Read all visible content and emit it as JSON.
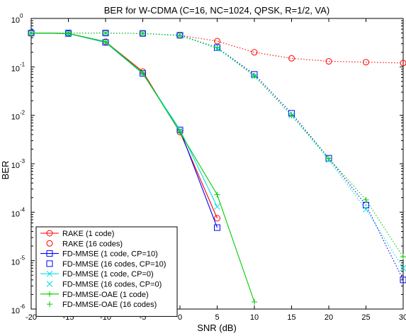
{
  "chart_data": {
    "type": "line",
    "title": "BER for W-CDMA (C=16, NC=1024, QPSK, R=1/2, VA)",
    "xlabel": "SNR (dB)",
    "ylabel": "BER",
    "xlim": [
      -20,
      30
    ],
    "ylim": [
      1e-06,
      1
    ],
    "yscale": "log",
    "x_ticks": [
      -20,
      -15,
      -10,
      -5,
      0,
      5,
      10,
      15,
      20,
      25,
      30
    ],
    "x_tick_labels": [
      "-20",
      "-15",
      "-10",
      "-5",
      "0",
      "5",
      "10",
      "15",
      "20",
      "25",
      "30"
    ],
    "y_ticks": [
      {
        "value": 1,
        "base": "10",
        "exp": "0"
      },
      {
        "value": 0.1,
        "base": "10",
        "exp": "-1"
      },
      {
        "value": 0.01,
        "base": "10",
        "exp": "-2"
      },
      {
        "value": 0.001,
        "base": "10",
        "exp": "-3"
      },
      {
        "value": 0.0001,
        "base": "10",
        "exp": "-4"
      },
      {
        "value": 1e-05,
        "base": "10",
        "exp": "-5"
      },
      {
        "value": 1e-06,
        "base": "10",
        "exp": "-6"
      }
    ],
    "grid": false,
    "legend_position": "bottom-left",
    "series": [
      {
        "name": "RAKE (1 code)",
        "color": "#ff0000",
        "marker": "circle",
        "line": "solid",
        "x": [
          -20,
          -15,
          -10,
          -5,
          0,
          5
        ],
        "y": [
          0.5,
          0.49,
          0.33,
          0.08,
          0.0045,
          7.5e-05
        ]
      },
      {
        "name": "RAKE (16 codes)",
        "color": "#ff0000",
        "marker": "circle",
        "line": "dotted",
        "x": [
          -20,
          -15,
          -10,
          -5,
          0,
          5,
          10,
          15,
          20,
          25,
          30
        ],
        "y": [
          0.5,
          0.5,
          0.5,
          0.49,
          0.45,
          0.34,
          0.2,
          0.15,
          0.13,
          0.125,
          0.12
        ]
      },
      {
        "name": "FD-MMSE (1 code, CP=10)",
        "color": "#0000ff",
        "marker": "square",
        "line": "solid",
        "x": [
          -20,
          -15,
          -10,
          -5,
          0,
          5
        ],
        "y": [
          0.5,
          0.49,
          0.32,
          0.073,
          0.005,
          4.8e-05
        ]
      },
      {
        "name": "FD-MMSE (16 codes, CP=10)",
        "color": "#0000ff",
        "marker": "square",
        "line": "dotted",
        "x": [
          -20,
          -15,
          -10,
          -5,
          0,
          5,
          10,
          15,
          20,
          25,
          30
        ],
        "y": [
          0.5,
          0.5,
          0.5,
          0.49,
          0.45,
          0.25,
          0.07,
          0.011,
          0.0013,
          0.00014,
          4e-06
        ]
      },
      {
        "name": "FD-MMSE (1 code, CP=0)",
        "color": "#00e0e0",
        "marker": "x",
        "line": "solid",
        "x": [
          -20,
          -15,
          -10,
          -5,
          0,
          5
        ],
        "y": [
          0.5,
          0.49,
          0.32,
          0.073,
          0.005,
          0.00013
        ]
      },
      {
        "name": "FD-MMSE (16 codes, CP=0)",
        "color": "#00e0e0",
        "marker": "x",
        "line": "dotted",
        "x": [
          -20,
          -15,
          -10,
          -5,
          0,
          5,
          10,
          15,
          20,
          25,
          30
        ],
        "y": [
          0.5,
          0.5,
          0.5,
          0.49,
          0.45,
          0.24,
          0.065,
          0.01,
          0.0012,
          0.000115,
          7e-06
        ]
      },
      {
        "name": "FD-MMSE-OAE (1 code)",
        "color": "#00cc00",
        "marker": "plus",
        "line": "solid",
        "x": [
          -20,
          -15,
          -10,
          -5,
          0,
          5,
          10
        ],
        "y": [
          0.5,
          0.49,
          0.33,
          0.075,
          0.0045,
          0.00023,
          1.4e-06
        ]
      },
      {
        "name": "FD-MMSE-OAE (16 codes)",
        "color": "#00cc00",
        "marker": "plus",
        "line": "dotted",
        "x": [
          -20,
          -15,
          -10,
          -5,
          0,
          5,
          10,
          15,
          20,
          25,
          30
        ],
        "y": [
          0.5,
          0.5,
          0.5,
          0.49,
          0.44,
          0.25,
          0.065,
          0.01,
          0.0013,
          0.00018,
          1.2e-05
        ]
      }
    ]
  }
}
